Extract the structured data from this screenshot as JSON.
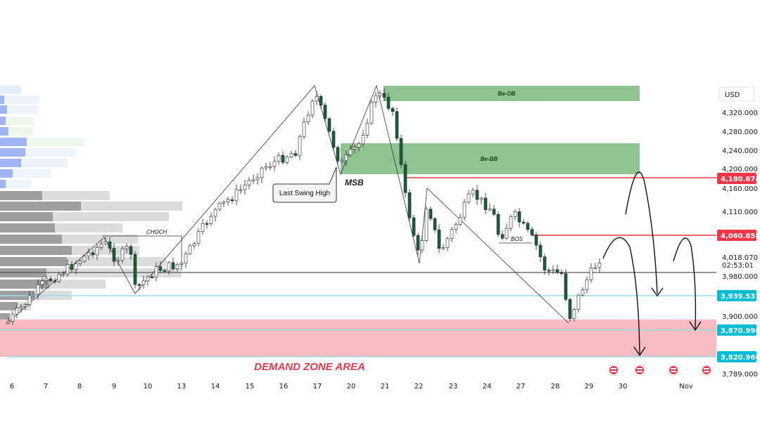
{
  "chart_data": {
    "type": "candlestick",
    "currency": "USD",
    "y_ticks": [
      4320,
      4280,
      4240,
      4200,
      4160,
      4110,
      4018.07,
      3980,
      3900,
      3789
    ],
    "y_tick_labels": [
      "4,320.000",
      "4,280.000",
      "4,240.000",
      "4,200.000",
      "4,160.000",
      "4,110.000",
      "4,018.070",
      "3,980.000",
      "3,900.000",
      "3,789.000"
    ],
    "countdown": "02:53:01",
    "x_labels": [
      "6",
      "7",
      "8",
      "9",
      "10",
      "13",
      "14",
      "15",
      "16",
      "17",
      "20",
      "21",
      "22",
      "23",
      "24",
      "27",
      "28",
      "29",
      "30",
      "Nov"
    ],
    "price_tags": [
      {
        "value": "4,180.674",
        "color": "#f23645"
      },
      {
        "value": "4,060.858",
        "color": "#f23645"
      },
      {
        "value": "3,939.531",
        "color": "#00bcd4"
      },
      {
        "value": "3,870.998",
        "color": "#00bcd4"
      },
      {
        "value": "3,820.960",
        "color": "#00bcd4"
      }
    ],
    "zones": [
      {
        "label": "Be-OB",
        "color": "#4caf50"
      },
      {
        "label": "Be-BB",
        "color": "#4caf50"
      },
      {
        "label": "DEMAND ZONE AREA",
        "color": "#f8bbc4"
      }
    ],
    "annotations": [
      "Last Swing High",
      "MSB",
      "CHOCH",
      "BOS"
    ],
    "colors": {
      "bull": "#ffffff",
      "bear": "#1b5e3b",
      "wick": "#222222",
      "resistance": "#f23645",
      "support": "#00bcd4"
    }
  }
}
